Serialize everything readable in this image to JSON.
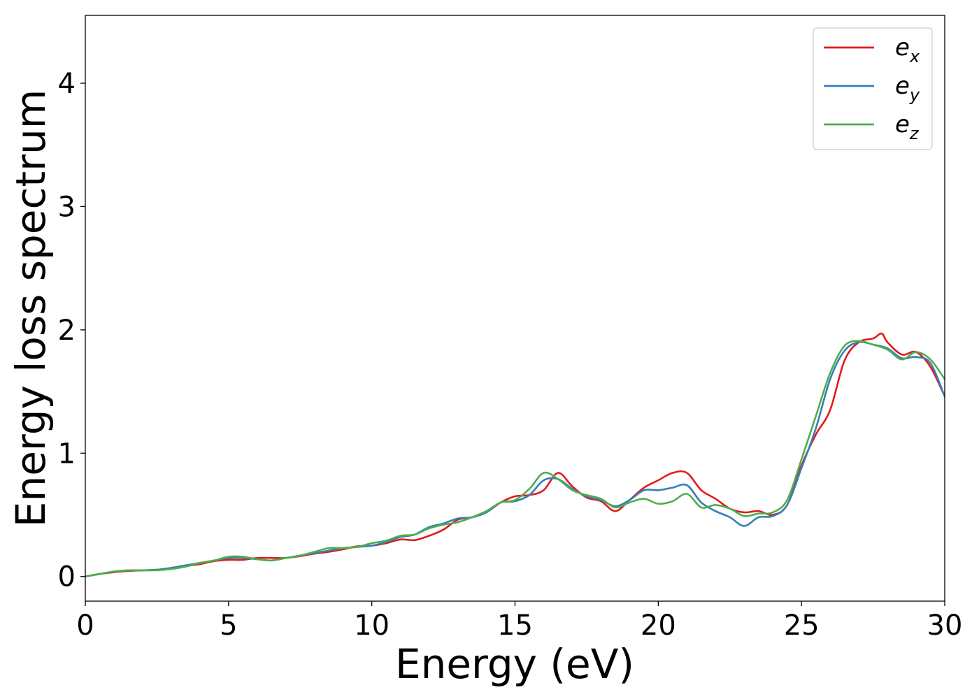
{
  "chart_data": {
    "type": "line",
    "title": "",
    "xlabel": "Energy (eV)",
    "ylabel": "Energy loss spectrum",
    "xlim": [
      0,
      30
    ],
    "ylim": [
      -0.2,
      4.55
    ],
    "xticks": [
      0,
      5,
      10,
      15,
      20,
      25,
      30
    ],
    "yticks": [
      0,
      1,
      2,
      3,
      4
    ],
    "grid": false,
    "legend_position": "top-right",
    "series": [
      {
        "name": "e",
        "subscript": "x",
        "color": "#e41a1c",
        "x": [
          0,
          0.5,
          1,
          1.5,
          2,
          2.5,
          3,
          3.5,
          4,
          4.5,
          5,
          5.5,
          6,
          6.5,
          7,
          7.5,
          8,
          8.5,
          9,
          9.5,
          10,
          10.5,
          11,
          11.5,
          12,
          12.5,
          13,
          13.5,
          14,
          14.5,
          15,
          15.5,
          16,
          16.5,
          17,
          17.5,
          18,
          18.5,
          19,
          19.5,
          20,
          20.5,
          21,
          21.5,
          22,
          22.5,
          23,
          23.5,
          24,
          24.5,
          25,
          25.5,
          26,
          26.5,
          27,
          27.5,
          27.8,
          28,
          28.5,
          29,
          29.5,
          30
        ],
        "y": [
          0,
          0.02,
          0.035,
          0.045,
          0.05,
          0.055,
          0.065,
          0.085,
          0.1,
          0.125,
          0.135,
          0.135,
          0.15,
          0.15,
          0.15,
          0.165,
          0.185,
          0.2,
          0.22,
          0.245,
          0.25,
          0.27,
          0.3,
          0.295,
          0.33,
          0.38,
          0.46,
          0.48,
          0.52,
          0.6,
          0.65,
          0.66,
          0.7,
          0.84,
          0.73,
          0.64,
          0.61,
          0.53,
          0.62,
          0.72,
          0.78,
          0.84,
          0.84,
          0.7,
          0.63,
          0.55,
          0.52,
          0.53,
          0.5,
          0.58,
          0.9,
          1.15,
          1.35,
          1.75,
          1.9,
          1.93,
          1.97,
          1.9,
          1.8,
          1.82,
          1.7,
          1.46
        ]
      },
      {
        "name": "e",
        "subscript": "y",
        "color": "#377eb8",
        "x": [
          0,
          0.5,
          1,
          1.5,
          2,
          2.5,
          3,
          3.5,
          4,
          4.5,
          5,
          5.5,
          6,
          6.5,
          7,
          7.5,
          8,
          8.5,
          9,
          9.5,
          10,
          10.5,
          11,
          11.5,
          12,
          12.5,
          13,
          13.5,
          14,
          14.5,
          15,
          15.5,
          16,
          16.5,
          17,
          17.5,
          18,
          18.5,
          19,
          19.5,
          20,
          20.5,
          21,
          21.5,
          22,
          22.5,
          23,
          23.5,
          24,
          24.5,
          25,
          25.5,
          26,
          26.5,
          27,
          27.5,
          28,
          28.5,
          29,
          29.5,
          30
        ],
        "y": [
          0,
          0.02,
          0.04,
          0.05,
          0.05,
          0.055,
          0.07,
          0.09,
          0.11,
          0.13,
          0.15,
          0.15,
          0.14,
          0.13,
          0.15,
          0.17,
          0.19,
          0.21,
          0.23,
          0.24,
          0.25,
          0.28,
          0.32,
          0.34,
          0.4,
          0.43,
          0.47,
          0.48,
          0.52,
          0.6,
          0.61,
          0.66,
          0.78,
          0.79,
          0.71,
          0.65,
          0.62,
          0.57,
          0.62,
          0.7,
          0.7,
          0.72,
          0.74,
          0.6,
          0.53,
          0.48,
          0.41,
          0.48,
          0.49,
          0.58,
          0.88,
          1.2,
          1.6,
          1.83,
          1.9,
          1.88,
          1.85,
          1.77,
          1.78,
          1.73,
          1.46
        ]
      },
      {
        "name": "e",
        "subscript": "z",
        "color": "#4daf4a",
        "x": [
          0,
          0.5,
          1,
          1.5,
          2,
          2.5,
          3,
          3.5,
          4,
          4.5,
          5,
          5.5,
          6,
          6.5,
          7,
          7.5,
          8,
          8.5,
          9,
          9.5,
          10,
          10.5,
          11,
          11.5,
          12,
          12.5,
          13,
          13.5,
          14,
          14.5,
          15,
          15.5,
          16,
          16.5,
          17,
          17.5,
          18,
          18.5,
          19,
          19.5,
          20,
          20.5,
          21,
          21.5,
          22,
          22.5,
          23,
          23.5,
          24,
          24.5,
          25,
          25.5,
          26,
          26.5,
          27,
          27.5,
          28,
          28.5,
          29,
          29.5,
          30
        ],
        "y": [
          0,
          0.02,
          0.04,
          0.05,
          0.05,
          0.05,
          0.06,
          0.08,
          0.11,
          0.13,
          0.16,
          0.16,
          0.14,
          0.13,
          0.15,
          0.17,
          0.2,
          0.23,
          0.23,
          0.24,
          0.27,
          0.29,
          0.33,
          0.34,
          0.39,
          0.42,
          0.44,
          0.48,
          0.53,
          0.6,
          0.62,
          0.71,
          0.84,
          0.79,
          0.7,
          0.66,
          0.63,
          0.56,
          0.6,
          0.63,
          0.59,
          0.61,
          0.67,
          0.56,
          0.58,
          0.55,
          0.49,
          0.51,
          0.52,
          0.62,
          0.95,
          1.3,
          1.65,
          1.87,
          1.91,
          1.88,
          1.84,
          1.76,
          1.82,
          1.76,
          1.6
        ]
      }
    ]
  }
}
